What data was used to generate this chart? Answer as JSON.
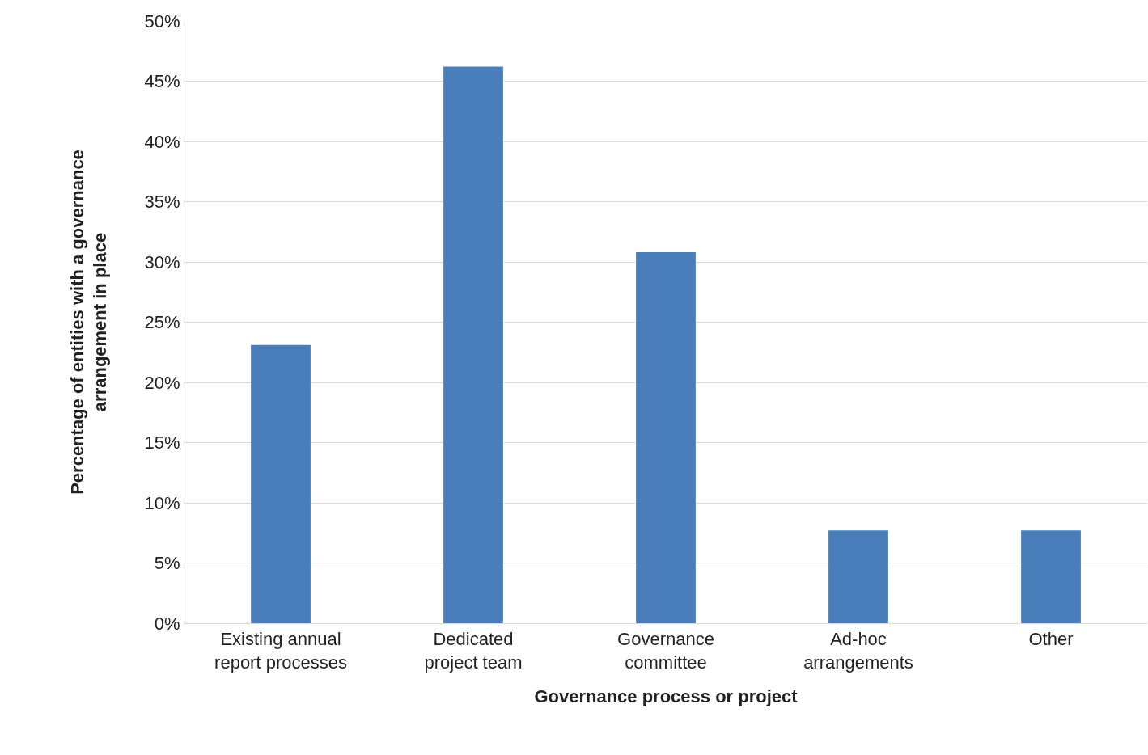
{
  "chart_data": {
    "type": "bar",
    "xlabel": "Governance process or project",
    "ylabel": "Percentage of entities with a governance arrangement in place",
    "categories": [
      "Existing annual report processes",
      "Dedicated project team",
      "Governance committee",
      "Ad-hoc arrangements",
      "Other"
    ],
    "values": [
      23.1,
      46.2,
      30.8,
      7.7,
      7.7
    ],
    "color": "#4a7ebb",
    "ylim": [
      0,
      50
    ],
    "yticks": [
      {
        "value": 0,
        "label": "0%"
      },
      {
        "value": 5,
        "label": "5%"
      },
      {
        "value": 10,
        "label": "10%"
      },
      {
        "value": 15,
        "label": "15%"
      },
      {
        "value": 20,
        "label": "20%"
      },
      {
        "value": 25,
        "label": "25%"
      },
      {
        "value": 30,
        "label": "30%"
      },
      {
        "value": 35,
        "label": "35%"
      },
      {
        "value": 40,
        "label": "40%"
      },
      {
        "value": 45,
        "label": "45%"
      },
      {
        "value": 50,
        "label": "50%"
      }
    ],
    "grid": "y",
    "legend": false
  }
}
